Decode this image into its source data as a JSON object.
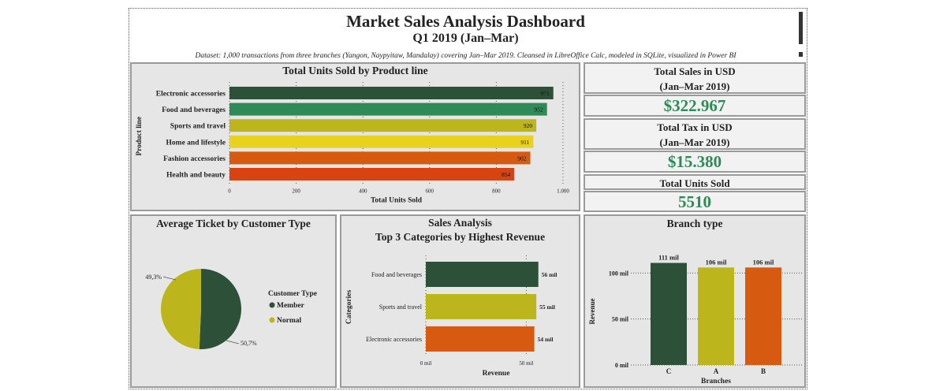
{
  "header": {
    "title": "Market Sales Analysis Dashboard",
    "subtitle": "Q1 2019 (Jan–Mar)",
    "note": "Dataset: 1,000 transactions from three branches (Yangon, Naypyitaw, Mandalay) covering Jan–Mar 2019. Cleansed in LibreOffice Calc, modeled in SQLite, visualized in Power BI"
  },
  "kpis": {
    "total_sales_label": "Total Sales in USD",
    "total_sales_period": "(Jan–Mar 2019)",
    "total_sales_value": "$322.967",
    "total_tax_label": "Total Tax in USD",
    "total_tax_period": "(Jan–Mar 2019)",
    "total_tax_value": "$15.380",
    "units_label": "Total Units Sold",
    "units_value": "5510",
    "value_color": "#2e8b57"
  },
  "panels": {
    "product_line_title": "Total Units Sold by Product line",
    "customer_type_title": "Average Ticket by Customer Type",
    "sales_analysis_title": "Sales Analysis",
    "sales_analysis_subtitle": "Top 3 Categories by Highest Revenue",
    "branch_title": "Branch type"
  },
  "chart_data": [
    {
      "type": "bar",
      "orientation": "horizontal",
      "title": "Total Units Sold by Product line",
      "categories": [
        "Electronic accessories",
        "Food and beverages",
        "Sports and travel",
        "Home and lifestyle",
        "Fashion accessories",
        "Health and beauty"
      ],
      "values": [
        971,
        952,
        920,
        911,
        902,
        854
      ],
      "data_labels": [
        "971",
        "952",
        "920",
        "911",
        "902",
        "854"
      ],
      "colors": [
        "#2c5138",
        "#2e8b57",
        "#bdb51c",
        "#e8d21e",
        "#d65a0f",
        "#d8430f"
      ],
      "xlabel": "Total Units Sold",
      "ylabel": "Product line",
      "xlim": [
        0,
        1000
      ],
      "xticks": [
        0,
        200,
        400,
        600,
        800,
        1000
      ],
      "xtick_labels": [
        "0",
        "200",
        "400",
        "600",
        "800",
        "1.000"
      ],
      "grid": true
    },
    {
      "type": "pie",
      "title": "Average Ticket by Customer Type",
      "legend_title": "Customer Type",
      "slices": [
        {
          "name": "Member",
          "value": 50.7,
          "label": "50,7%",
          "color": "#2c5138"
        },
        {
          "name": "Normal",
          "value": 49.3,
          "label": "49,3%",
          "color": "#bdb51c"
        }
      ],
      "legend_position": "right"
    },
    {
      "type": "bar",
      "orientation": "horizontal",
      "title": "Sales Analysis",
      "subtitle": "Top 3 Categories by Highest Revenue",
      "categories": [
        "Food and beverages",
        "Sports and travel",
        "Electronic accessories"
      ],
      "values": [
        56,
        55,
        54
      ],
      "unit": "mil",
      "data_labels": [
        "56 mil",
        "55 mil",
        "54 mil"
      ],
      "colors": [
        "#2c5138",
        "#bdb51c",
        "#d65a0f"
      ],
      "xlabel": "Revenue",
      "ylabel": "Categories",
      "xlim": [
        0,
        62
      ],
      "xticks": [
        0,
        50
      ],
      "xtick_labels": [
        "0 mil",
        "50 mil"
      ],
      "grid": true
    },
    {
      "type": "bar",
      "orientation": "vertical",
      "title": "Branch type",
      "categories": [
        "C",
        "A",
        "B"
      ],
      "values": [
        111,
        106,
        106
      ],
      "unit": "mil",
      "data_labels": [
        "111 mil",
        "106 mil",
        "106 mil"
      ],
      "colors": [
        "#2c5138",
        "#bdb51c",
        "#d65a0f"
      ],
      "xlabel": "Branches",
      "ylabel": "Revenue",
      "ylim": [
        0,
        120
      ],
      "yticks": [
        0,
        50,
        100
      ],
      "ytick_labels": [
        "0 mil",
        "50 mil",
        "100 mil"
      ],
      "grid": true
    }
  ]
}
